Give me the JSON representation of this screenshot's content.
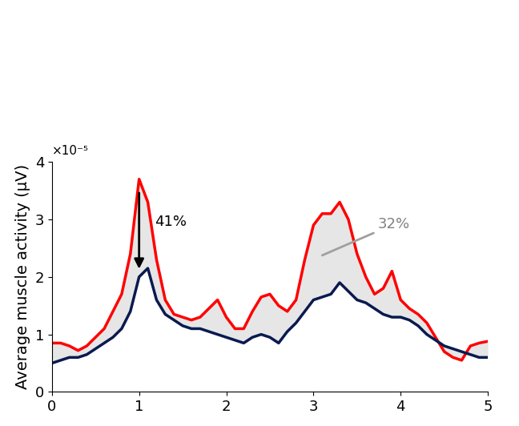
{
  "chart_data": {
    "type": "line",
    "y_label": "Average muscle activity (μV)",
    "y_axis_note": "×10⁻⁵",
    "annotations": [
      "41%",
      "32%"
    ],
    "x": [
      0.0,
      0.1,
      0.2,
      0.3,
      0.4,
      0.5,
      0.6,
      0.7,
      0.8,
      0.9,
      1.0,
      1.1,
      1.2,
      1.3,
      1.4,
      1.5,
      1.6,
      1.7,
      1.8,
      1.9,
      2.0,
      2.1,
      2.2,
      2.3,
      2.4,
      2.5,
      2.6,
      2.7,
      2.8,
      2.9,
      3.0,
      3.1,
      3.2,
      3.3,
      3.4,
      3.5,
      3.6,
      3.7,
      3.8,
      3.9,
      4.0,
      4.1,
      4.2,
      4.3,
      4.4,
      4.5,
      4.6,
      4.7,
      4.8,
      4.9,
      5.0
    ],
    "series": [
      {
        "color": "#ff0000",
        "values": [
          0.85,
          0.85,
          0.8,
          0.72,
          0.8,
          0.95,
          1.1,
          1.4,
          1.7,
          2.4,
          3.7,
          3.3,
          2.3,
          1.6,
          1.35,
          1.3,
          1.25,
          1.3,
          1.45,
          1.6,
          1.3,
          1.1,
          1.1,
          1.4,
          1.65,
          1.7,
          1.5,
          1.4,
          1.6,
          2.3,
          2.9,
          3.1,
          3.1,
          3.3,
          3.0,
          2.4,
          2.0,
          1.7,
          1.8,
          2.1,
          1.6,
          1.45,
          1.35,
          1.2,
          0.95,
          0.7,
          0.6,
          0.55,
          0.8,
          0.85,
          0.88
        ]
      },
      {
        "color": "#0a1a50",
        "values": [
          0.5,
          0.55,
          0.6,
          0.6,
          0.65,
          0.75,
          0.85,
          0.95,
          1.1,
          1.4,
          2.0,
          2.15,
          1.6,
          1.35,
          1.25,
          1.15,
          1.1,
          1.1,
          1.05,
          1.0,
          0.95,
          0.9,
          0.85,
          0.95,
          1.0,
          0.95,
          0.85,
          1.05,
          1.2,
          1.4,
          1.6,
          1.65,
          1.7,
          1.9,
          1.75,
          1.6,
          1.55,
          1.45,
          1.35,
          1.3,
          1.3,
          1.25,
          1.15,
          1.0,
          0.9,
          0.8,
          0.75,
          0.7,
          0.65,
          0.6,
          0.6
        ]
      }
    ],
    "xlim": [
      0,
      5
    ],
    "xticks": [
      0,
      1,
      2,
      3,
      4,
      5
    ],
    "ylim": [
      0,
      4
    ],
    "yticks": [
      0,
      1,
      2,
      3,
      4
    ]
  }
}
